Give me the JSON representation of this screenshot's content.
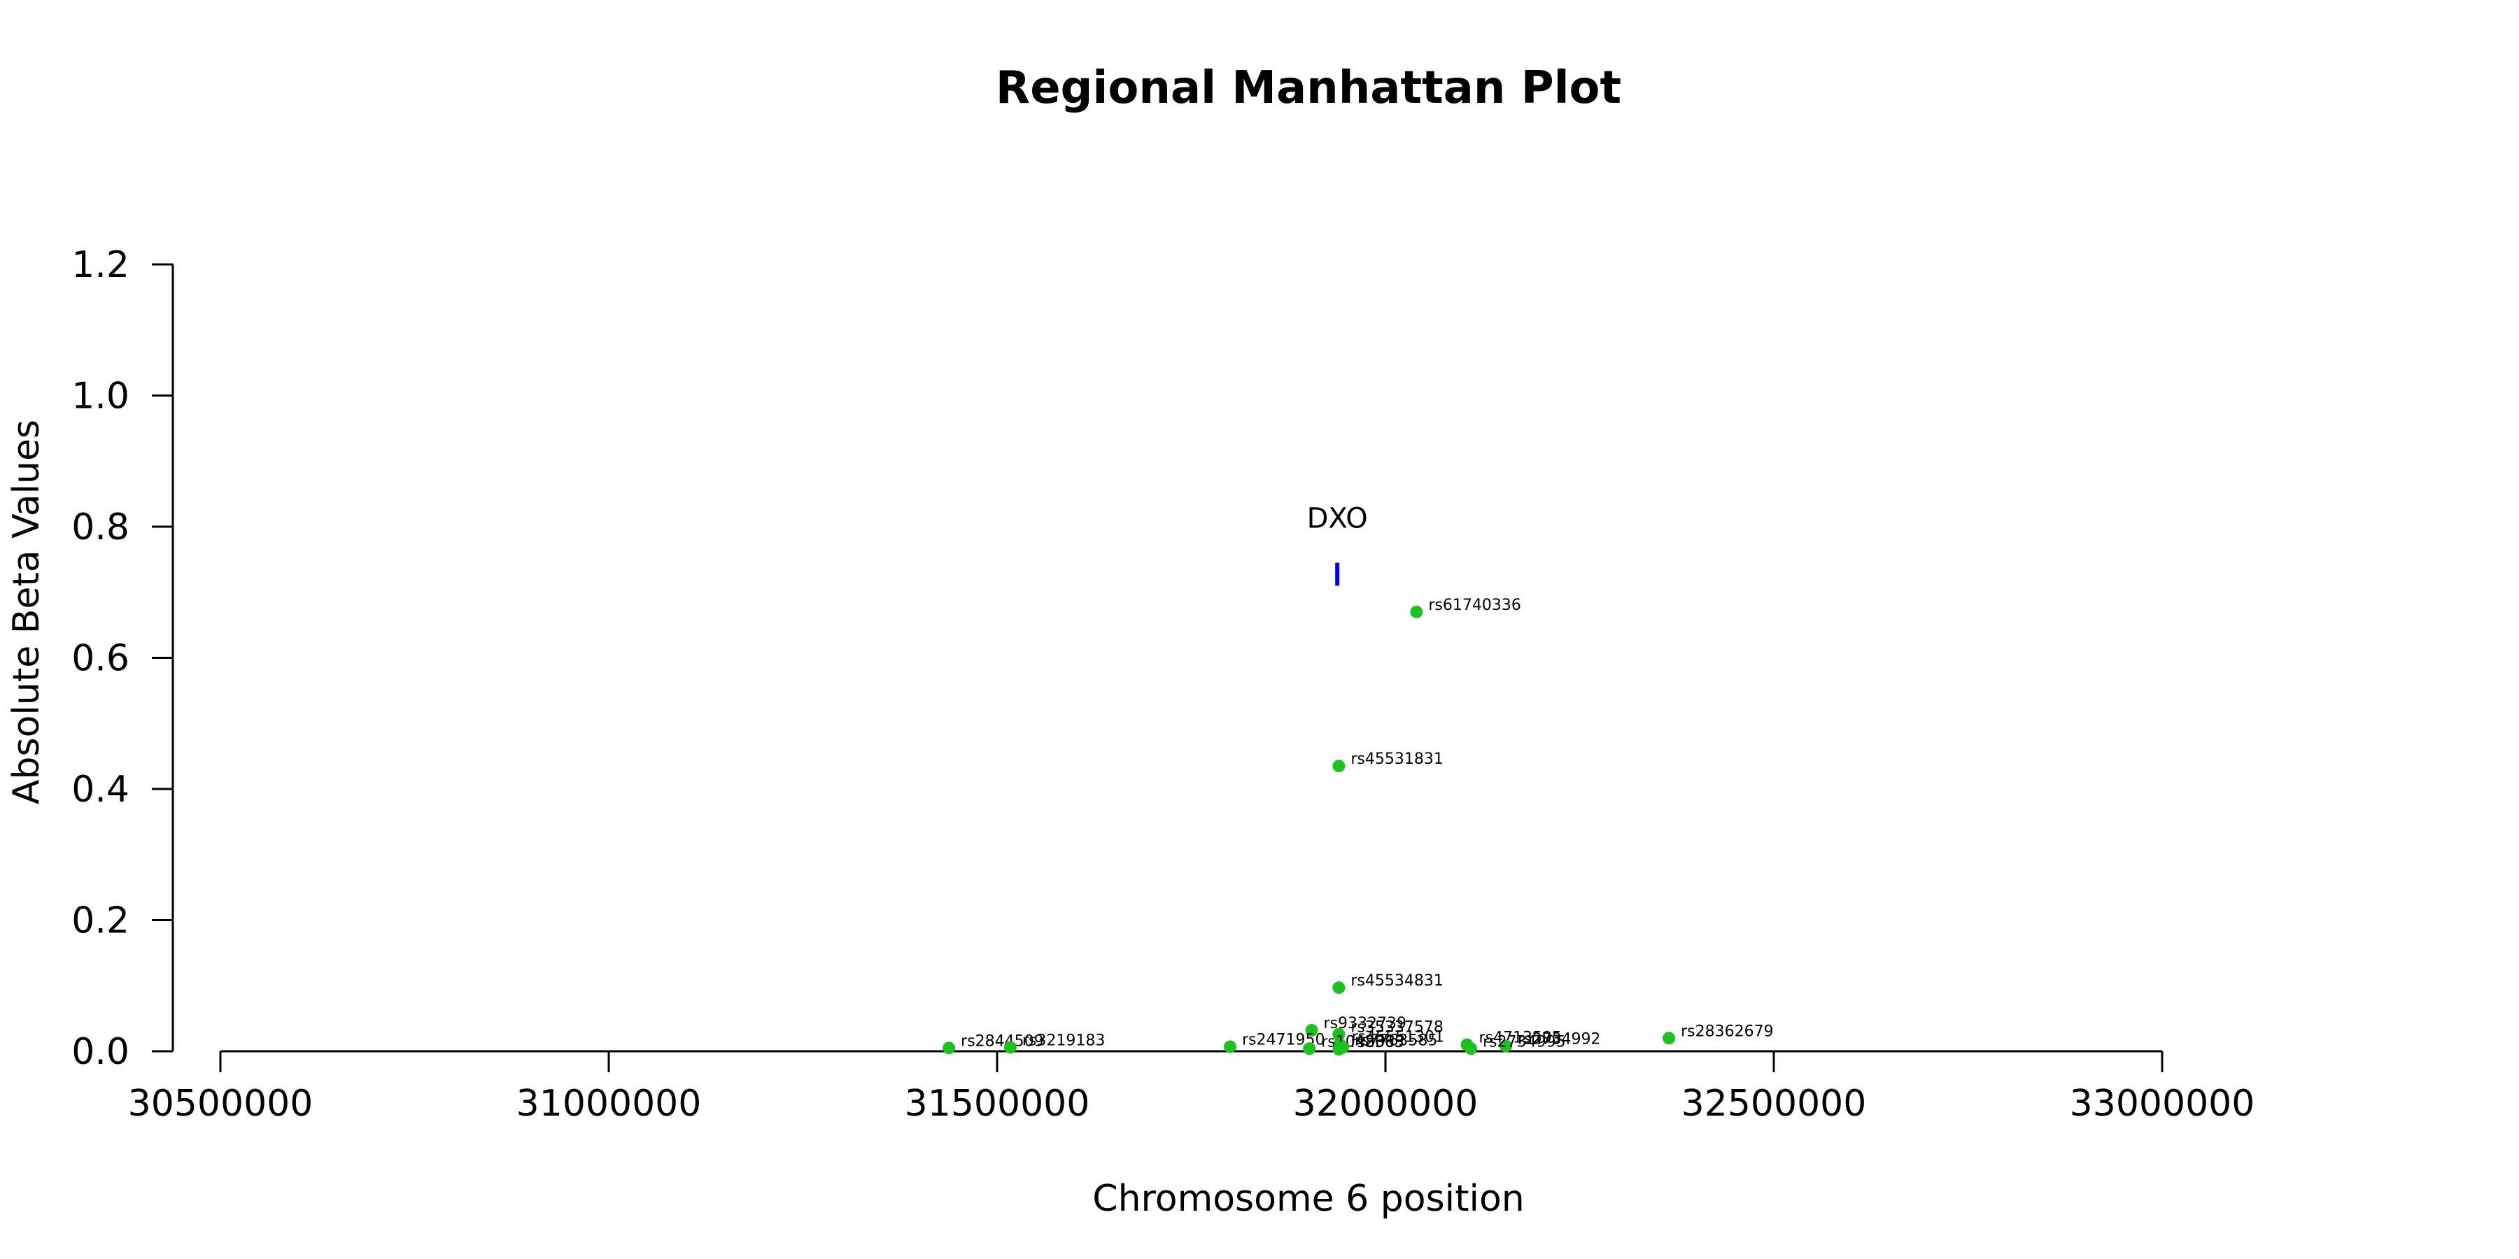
{
  "chart_data": {
    "type": "scatter",
    "title": "Regional Manhattan Plot",
    "xlabel": "Chromosome 6 position",
    "ylabel": "Absolute Beta Values",
    "xlim": [
      30500000,
      33000000
    ],
    "ylim": [
      0,
      1.2
    ],
    "x_ticks": [
      30500000,
      31000000,
      31500000,
      32000000,
      32500000,
      33000000
    ],
    "y_ticks": [
      0.0,
      0.2,
      0.4,
      0.6,
      0.8,
      1.0,
      1.2
    ],
    "x_tick_labels": [
      "30500000",
      "31000000",
      "31500000",
      "32000000",
      "32500000",
      "33000000"
    ],
    "y_tick_labels": [
      "0.0",
      "0.2",
      "0.4",
      "0.6",
      "0.8",
      "1.0",
      "1.2"
    ],
    "point_color": "#1ec21e",
    "gene_color": "#0000ee",
    "points": [
      {
        "label": "rs61740336",
        "x": 32040000,
        "y": 0.67
      },
      {
        "label": "rs45531831",
        "x": 31940000,
        "y": 0.435
      },
      {
        "label": "rs45534831",
        "x": 31940000,
        "y": 0.097
      },
      {
        "label": "rs9332739",
        "x": 31905000,
        "y": 0.032
      },
      {
        "label": "rs35337578",
        "x": 31940000,
        "y": 0.026
      },
      {
        "label": "rs28362679",
        "x": 32365000,
        "y": 0.02
      },
      {
        "label": "rs2844509",
        "x": 31438000,
        "y": 0.005
      },
      {
        "label": "rs3219183",
        "x": 31517000,
        "y": 0.006
      },
      {
        "label": "rs2471950",
        "x": 31800000,
        "y": 0.007
      },
      {
        "label": "rs45551301",
        "x": 31941000,
        "y": 0.011
      },
      {
        "label": "rs1042663",
        "x": 31902000,
        "y": 0.004
      },
      {
        "label": "rs7763585",
        "x": 31945000,
        "y": 0.006
      },
      {
        "label": "rs4713595",
        "x": 32105000,
        "y": 0.01
      },
      {
        "label": "rs2734992",
        "x": 32155000,
        "y": 0.008
      },
      {
        "label": "rs8365",
        "x": 31940000,
        "y": 0.003
      },
      {
        "label": "rs2734995",
        "x": 32110000,
        "y": 0.004
      }
    ],
    "genes": [
      {
        "name": "DXO",
        "x": 31938000,
        "y_low": 0.71,
        "y_high": 0.745
      }
    ]
  }
}
